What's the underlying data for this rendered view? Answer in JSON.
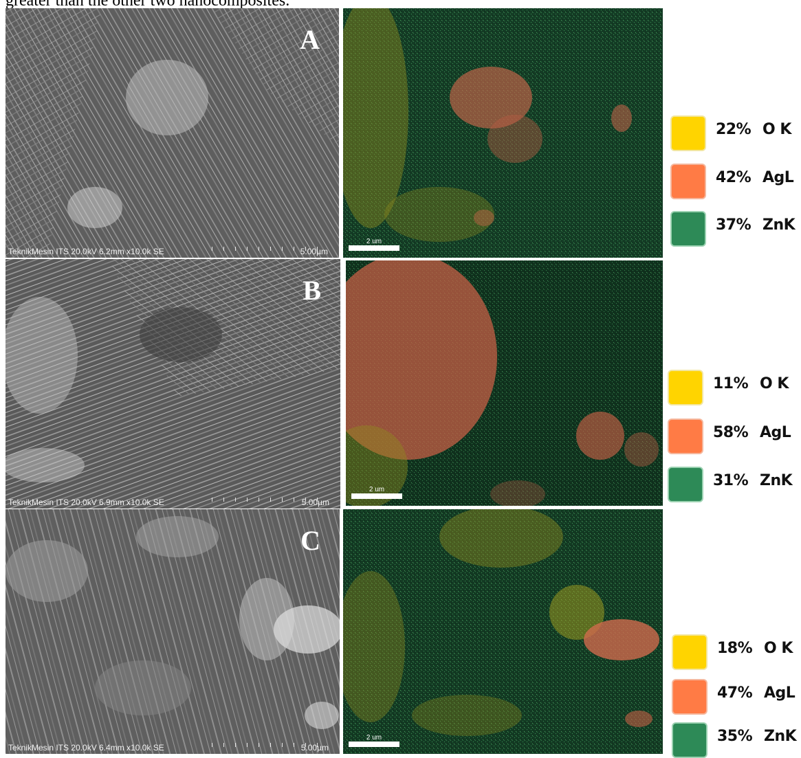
{
  "caption_fragment": "greater than the other two nanocomposites.",
  "panels": [
    {
      "letter": "A",
      "sem_info": "TeknikMesin ITS 20.0kV 6.2mm x10.0k SE",
      "sem_scale": "5.00µm",
      "eds_scale": "2 um",
      "legend": [
        {
          "percent": "22%",
          "element": "O K",
          "color": "#ffd400"
        },
        {
          "percent": "42%",
          "element": "AgL",
          "color": "#ff7b45"
        },
        {
          "percent": "37%",
          "element": "ZnK",
          "color": "#2d8a57"
        }
      ]
    },
    {
      "letter": "B",
      "sem_info": "TeknikMesin ITS 20.0kV 6.9mm x10.0k SE",
      "sem_scale": "5.00µm",
      "eds_scale": "2 um",
      "legend": [
        {
          "percent": "11%",
          "element": "O K",
          "color": "#ffd400"
        },
        {
          "percent": "58%",
          "element": "AgL",
          "color": "#ff7b45"
        },
        {
          "percent": "31%",
          "element": "ZnK",
          "color": "#2d8a57"
        }
      ]
    },
    {
      "letter": "C",
      "sem_info": "TeknikMesin ITS 20.0kV 6.4mm x10.0k SE",
      "sem_scale": "5.00µm",
      "eds_scale": "2 um",
      "legend": [
        {
          "percent": "18%",
          "element": "O K",
          "color": "#ffd400"
        },
        {
          "percent": "47%",
          "element": "AgL",
          "color": "#ff7b45"
        },
        {
          "percent": "35%",
          "element": "ZnK",
          "color": "#2d8a57"
        }
      ]
    }
  ]
}
